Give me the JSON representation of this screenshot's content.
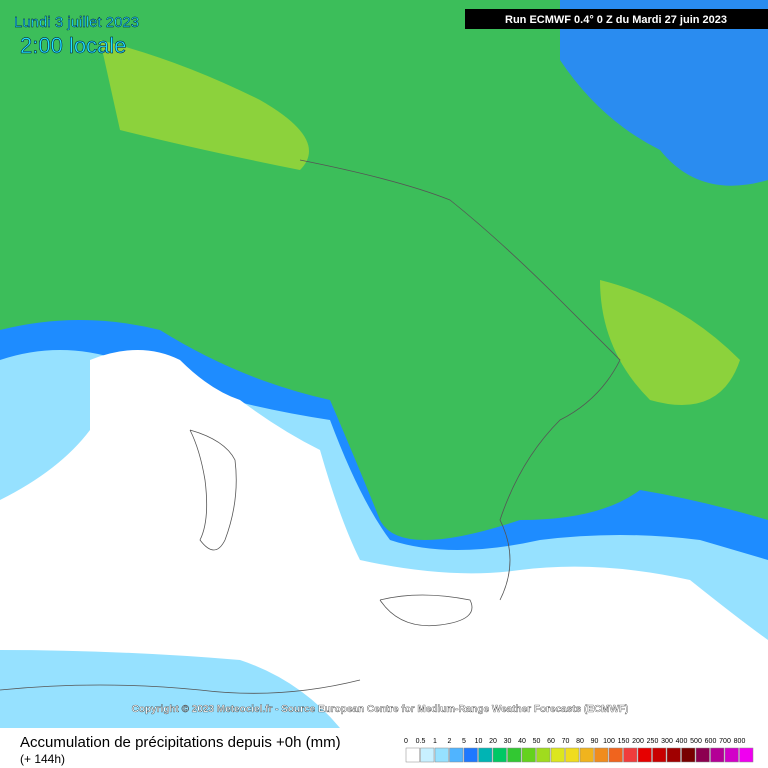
{
  "header": {
    "date": "Lundi 3 juillet 2023",
    "time": "2:00 locale",
    "run": "Run ECMWF 0.4° 0 Z du Mardi 27 juin 2023"
  },
  "copyright": "Copyright © 2023 Meteociel.fr - Source European Centre for Medium-Range Weather Forecasts (ECMWF)",
  "legend": {
    "title": "Accumulation de précipitations depuis +0h (mm)",
    "subtitle": "(+ 144h)",
    "levels": [
      {
        "label": "0",
        "color": "#ffffff"
      },
      {
        "label": "0.5",
        "color": "#c8f0ff"
      },
      {
        "label": "1",
        "color": "#96e1ff"
      },
      {
        "label": "2",
        "color": "#50b4ff"
      },
      {
        "label": "5",
        "color": "#1e78ff"
      },
      {
        "label": "10",
        "color": "#00b4b4"
      },
      {
        "label": "20",
        "color": "#00c864"
      },
      {
        "label": "30",
        "color": "#32c832"
      },
      {
        "label": "40",
        "color": "#64d21e"
      },
      {
        "label": "50",
        "color": "#a0dc1e"
      },
      {
        "label": "60",
        "color": "#dce61e"
      },
      {
        "label": "70",
        "color": "#f0dc1e"
      },
      {
        "label": "80",
        "color": "#f0b41e"
      },
      {
        "label": "90",
        "color": "#f08c1e"
      },
      {
        "label": "100",
        "color": "#f0641e"
      },
      {
        "label": "150",
        "color": "#f03c3c"
      },
      {
        "label": "200",
        "color": "#e60000"
      },
      {
        "label": "250",
        "color": "#c80000"
      },
      {
        "label": "300",
        "color": "#a00000"
      },
      {
        "label": "400",
        "color": "#780000"
      },
      {
        "label": "500",
        "color": "#8c0050"
      },
      {
        "label": "600",
        "color": "#b40096"
      },
      {
        "label": "700",
        "color": "#d200c8"
      },
      {
        "label": "800",
        "color": "#f000f0"
      }
    ]
  }
}
